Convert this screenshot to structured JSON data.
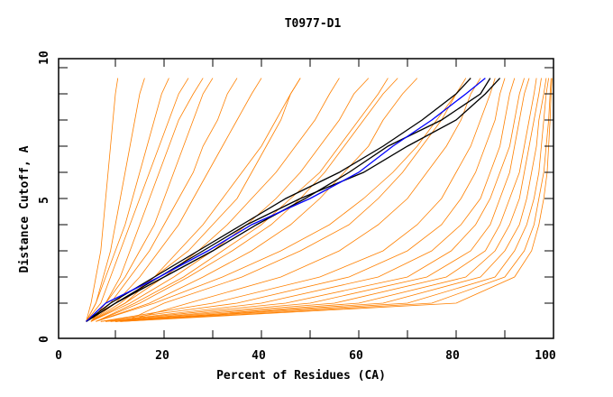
{
  "chart_data": {
    "type": "line",
    "title": "T0977-D1",
    "xlabel": "Percent of Residues (CA)",
    "ylabel": "Distance Cutoff, A",
    "xlim": [
      0,
      100
    ],
    "ylim": [
      0,
      10
    ],
    "xticks": [
      "0",
      "20",
      "40",
      "60",
      "80",
      "100"
    ],
    "yticks": [
      "0",
      "5",
      "10"
    ],
    "y_levels": [
      0.3,
      1,
      2,
      3,
      4,
      5,
      6,
      7,
      8,
      9,
      9.6
    ],
    "colors": {
      "other": "#ff8000",
      "highlight": "#000000",
      "selected": "#0000ff"
    },
    "series": [
      {
        "group": "other",
        "x": [
          4,
          5,
          6,
          7,
          7.5,
          8,
          8.5,
          9,
          9.5,
          10,
          10.5
        ]
      },
      {
        "group": "other",
        "x": [
          4,
          6,
          7.5,
          9,
          10,
          11,
          12,
          13,
          14,
          15,
          16
        ]
      },
      {
        "group": "other",
        "x": [
          4,
          6,
          8,
          10,
          12,
          13.5,
          15,
          16.5,
          18,
          19.5,
          21
        ]
      },
      {
        "group": "other",
        "x": [
          4,
          7,
          9,
          11,
          13,
          15,
          17,
          19,
          21,
          23,
          25
        ]
      },
      {
        "group": "other",
        "x": [
          5,
          8,
          11,
          13,
          15,
          17,
          19,
          21,
          23,
          26,
          28
        ]
      },
      {
        "group": "other",
        "x": [
          5,
          8,
          12,
          15,
          18,
          20,
          22,
          24,
          26,
          28,
          30
        ]
      },
      {
        "group": "other",
        "x": [
          5,
          9,
          13,
          17,
          20,
          23,
          26,
          28,
          31,
          33,
          35
        ]
      },
      {
        "group": "other",
        "x": [
          5,
          10,
          15,
          19,
          23,
          26,
          29,
          32,
          35,
          38,
          40
        ]
      },
      {
        "group": "other",
        "x": [
          5,
          12,
          18,
          23,
          28,
          32,
          36,
          40,
          43,
          46,
          48
        ]
      },
      {
        "group": "other",
        "x": [
          5,
          12,
          20,
          27,
          33,
          38,
          43,
          47,
          51,
          54,
          56
        ]
      },
      {
        "group": "other",
        "x": [
          5,
          13,
          22,
          30,
          37,
          43,
          48,
          52,
          56,
          59,
          62
        ]
      },
      {
        "group": "other",
        "x": [
          6,
          15,
          25,
          34,
          42,
          48,
          53,
          57,
          61,
          65,
          68
        ]
      },
      {
        "group": "other",
        "x": [
          6,
          17,
          28,
          38,
          46,
          52,
          57,
          62,
          65,
          69,
          72
        ]
      },
      {
        "group": "other",
        "x": [
          6,
          14,
          24,
          32,
          40,
          46,
          52,
          56,
          60,
          64,
          66
        ]
      },
      {
        "group": "other",
        "x": [
          5,
          11,
          18,
          25,
          30,
          35,
          38,
          41,
          44,
          46,
          48
        ]
      },
      {
        "group": "other",
        "x": [
          7,
          30,
          52,
          65,
          72,
          77,
          80,
          83,
          85,
          87,
          88
        ]
      },
      {
        "group": "other",
        "x": [
          7,
          35,
          58,
          70,
          77,
          81,
          84,
          86,
          88,
          89,
          90
        ]
      },
      {
        "group": "other",
        "x": [
          8,
          40,
          64,
          75,
          81,
          85,
          87,
          89,
          90,
          91,
          92
        ]
      },
      {
        "group": "other",
        "x": [
          8,
          45,
          70,
          79,
          84,
          87,
          89,
          91,
          92,
          93,
          94
        ]
      },
      {
        "group": "other",
        "x": [
          9,
          50,
          74,
          83,
          87,
          89,
          91,
          92,
          93,
          94,
          95
        ]
      },
      {
        "group": "other",
        "x": [
          9,
          55,
          78,
          86,
          89,
          91,
          93,
          94,
          95,
          96,
          96.5
        ]
      },
      {
        "group": "other",
        "x": [
          10,
          60,
          82,
          88,
          91,
          93,
          94,
          95,
          96,
          97,
          97.5
        ]
      },
      {
        "group": "other",
        "x": [
          10,
          65,
          85,
          90,
          93,
          94.5,
          95.5,
          96.5,
          97,
          98,
          98.5
        ]
      },
      {
        "group": "other",
        "x": [
          10,
          70,
          88,
          92,
          94.5,
          96,
          97,
          97.5,
          98,
          98.5,
          99
        ]
      },
      {
        "group": "other",
        "x": [
          11,
          75,
          90,
          94,
          96,
          97,
          98,
          98.5,
          99,
          99.3,
          99.5
        ]
      },
      {
        "group": "other",
        "x": [
          12,
          20,
          36,
          48,
          58,
          64,
          69,
          73,
          77,
          80,
          82
        ]
      },
      {
        "group": "other",
        "x": [
          12,
          25,
          44,
          56,
          64,
          70,
          74,
          78,
          81,
          83,
          85
        ]
      },
      {
        "group": "other",
        "x": [
          6,
          18,
          32,
          44,
          54,
          61,
          67,
          72,
          76,
          80,
          83
        ]
      },
      {
        "group": "other",
        "x": [
          11,
          80,
          92,
          95.5,
          97,
          98,
          98.7,
          99,
          99.3,
          99.5,
          99.7
        ]
      },
      {
        "group": "highlight",
        "x": [
          4,
          9,
          18,
          27,
          36,
          45,
          56,
          65,
          73,
          80,
          83
        ]
      },
      {
        "group": "highlight",
        "x": [
          4,
          10,
          20,
          30,
          39,
          49,
          58,
          66,
          77,
          85,
          87
        ]
      },
      {
        "group": "highlight",
        "x": [
          4,
          10,
          19,
          28,
          37,
          48,
          61,
          70,
          80,
          86,
          89
        ]
      },
      {
        "group": "selected",
        "x": [
          4,
          8,
          19,
          29,
          38,
          50,
          60,
          67,
          75,
          82,
          86
        ]
      }
    ]
  }
}
